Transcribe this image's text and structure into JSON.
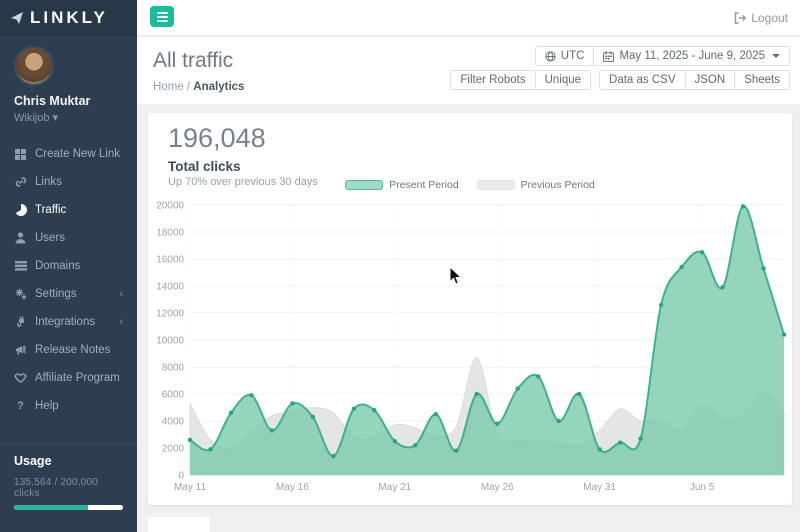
{
  "app": {
    "logo": "LINKLY",
    "logout_label": "Logout"
  },
  "sidebar": {
    "user": {
      "name": "Chris Muktar",
      "org": "Wikijob"
    },
    "items": [
      {
        "label": "Create New Link"
      },
      {
        "label": "Links"
      },
      {
        "label": "Traffic"
      },
      {
        "label": "Users"
      },
      {
        "label": "Domains"
      },
      {
        "label": "Settings"
      },
      {
        "label": "Integrations"
      },
      {
        "label": "Release Notes"
      },
      {
        "label": "Affiliate Program"
      },
      {
        "label": "Help"
      }
    ],
    "usage": {
      "title": "Usage",
      "text": "135,564 / 200,000 clicks",
      "percent": 68
    }
  },
  "header": {
    "title": "All traffic",
    "breadcrumb_home": "Home",
    "breadcrumb_sep": "/",
    "breadcrumb_current": "Analytics",
    "timezone_label": "UTC",
    "date_range": "May 11, 2025 - June 9, 2025",
    "group1": [
      "Filter Robots",
      "Unique"
    ],
    "group2": [
      "Data as CSV",
      "JSON",
      "Sheets"
    ]
  },
  "stats": {
    "total": "196,048",
    "label": "Total clicks",
    "sub": "Up 70% over previous 30 days"
  },
  "legend": {
    "present": "Present Period",
    "previous": "Previous Period"
  },
  "colors": {
    "accent": "#1abc9c",
    "present_line": "#3fb28d",
    "present_fill": "#7bcaaa",
    "present_dot": "#2aa284",
    "previous_fill": "#e3e4e4",
    "previous_stroke": "#dcdddd"
  },
  "chart_data": {
    "type": "area",
    "title": "Total clicks",
    "xlabel": "",
    "ylabel": "",
    "ylim": [
      0,
      20000
    ],
    "yticks": [
      0,
      2000,
      4000,
      6000,
      8000,
      10000,
      12000,
      14000,
      16000,
      18000,
      20000
    ],
    "xtick_indices": [
      0,
      5,
      10,
      15,
      20,
      25
    ],
    "categories": [
      "May 11",
      "May 12",
      "May 13",
      "May 14",
      "May 15",
      "May 16",
      "May 17",
      "May 18",
      "May 19",
      "May 20",
      "May 21",
      "May 22",
      "May 23",
      "May 24",
      "May 25",
      "May 26",
      "May 27",
      "May 28",
      "May 29",
      "May 30",
      "May 31",
      "Jun 1",
      "Jun 2",
      "Jun 3",
      "Jun 4",
      "Jun 5",
      "Jun 6",
      "Jun 7",
      "Jun 8",
      "Jun 9"
    ],
    "legend_position": "top",
    "grid": true,
    "series": [
      {
        "name": "Previous Period",
        "values": [
          5300,
          2600,
          2000,
          3200,
          4400,
          4700,
          5000,
          4600,
          2900,
          2800,
          3700,
          3500,
          2900,
          3600,
          8700,
          3000,
          2600,
          2500,
          2400,
          2300,
          3300,
          4900,
          4000,
          4100,
          3300,
          5200,
          4200,
          4400,
          6200,
          4700
        ]
      },
      {
        "name": "Present Period",
        "values": [
          2600,
          1900,
          4600,
          5900,
          3300,
          5300,
          4300,
          1400,
          4900,
          4800,
          2500,
          2200,
          4500,
          1800,
          6000,
          3800,
          6400,
          7300,
          4000,
          6000,
          1900,
          2400,
          2700,
          12600,
          15400,
          16500,
          13900,
          19900,
          15300,
          10400
        ]
      }
    ]
  }
}
